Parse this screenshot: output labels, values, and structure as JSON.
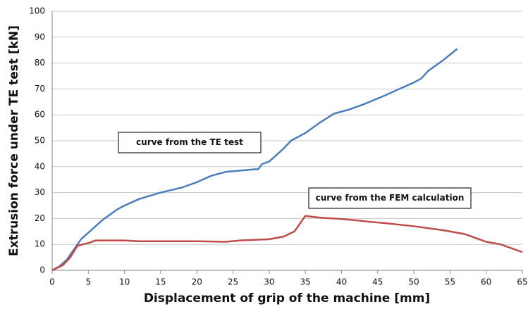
{
  "chart_data": {
    "type": "line",
    "xlabel": "Displacement of grip of the machine [mm]",
    "ylabel": "Extrusion force under TE test [kN]",
    "xlim": [
      0,
      65
    ],
    "ylim": [
      0,
      100
    ],
    "xticks": [
      0,
      5,
      10,
      15,
      20,
      25,
      30,
      35,
      40,
      45,
      50,
      55,
      60,
      65
    ],
    "yticks": [
      0,
      10,
      20,
      30,
      40,
      50,
      60,
      70,
      80,
      90,
      100
    ],
    "grid": true,
    "annotations": [
      {
        "text": "curve from the TE test"
      },
      {
        "text": "curve from the FEM calculation"
      }
    ],
    "series": [
      {
        "name": "curve from the TE test",
        "color": "#4a7ebb",
        "x": [
          0,
          1,
          2,
          3,
          4,
          5,
          6,
          7,
          8,
          9,
          10,
          12,
          15,
          18,
          20,
          22,
          24,
          26,
          28,
          28.5,
          29,
          30,
          32,
          33,
          35,
          37,
          39,
          41,
          43,
          46,
          48,
          50,
          51,
          52,
          54,
          56
        ],
        "values": [
          0,
          1.5,
          4,
          8,
          12,
          14.5,
          17,
          19.5,
          21.5,
          23.5,
          25,
          27.5,
          30,
          32,
          34,
          36.5,
          38,
          38.5,
          39,
          39,
          41,
          42,
          47,
          50,
          53,
          57,
          60.5,
          62,
          64,
          67.5,
          70,
          72.5,
          74,
          77,
          81,
          85.5
        ]
      },
      {
        "name": "curve from the FEM calculation",
        "color": "#be4b48",
        "x": [
          0,
          1.5,
          2.5,
          3.5,
          5,
          6,
          10,
          12,
          20,
          24,
          26,
          30,
          32,
          33.5,
          35,
          37,
          40,
          42,
          44,
          46,
          50,
          54,
          57,
          60,
          62,
          65
        ],
        "values": [
          0,
          2,
          5,
          9.5,
          10.5,
          11.5,
          11.5,
          11.2,
          11.2,
          11,
          11.5,
          12,
          13,
          15,
          21,
          20.3,
          19.8,
          19.3,
          18.7,
          18.2,
          17,
          15.5,
          14,
          11,
          10,
          7
        ]
      }
    ]
  }
}
